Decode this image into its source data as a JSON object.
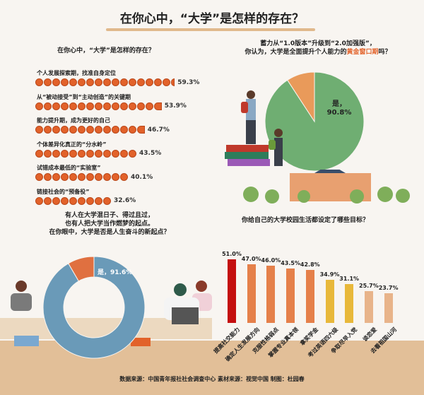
{
  "header": {
    "title": "在你心中，“大学”是怎样的存在？"
  },
  "chart_data": [
    {
      "type": "bar",
      "style": "dot-row",
      "title": "在你心中，“大学”是怎样的存在？",
      "categories": [
        "个人发展探索期，找准自身定位",
        "从“被动接受”到“主动创造”的关键期",
        "能力提升期，成为更好的自己",
        "个体差异化真正的“分水岭”",
        "试错成本最低的“实验室”",
        "链接社会的“预备役”"
      ],
      "values": [
        59.3,
        53.9,
        46.7,
        43.5,
        40.1,
        32.6
      ],
      "labels": [
        "59.3%",
        "53.9%",
        "46.7%",
        "43.5%",
        "40.1%",
        "32.6%"
      ],
      "color": "#e2622a"
    },
    {
      "type": "pie",
      "title_lines": [
        "蓄力从“1.0版本”升级到“2.0加强版”，",
        "你认为，大学是全面提升个人能力的",
        "黄金窗口期",
        "吗？"
      ],
      "slices": [
        {
          "name": "是",
          "value": 90.8,
          "label": "是，",
          "pct": "90.8%",
          "color": "#6fae72"
        },
        {
          "value": 9.2,
          "color": "#e99a5a"
        }
      ]
    },
    {
      "type": "pie",
      "donut": true,
      "title_lines": [
        "有人在大学混日子、得过且过，",
        "也有人把大学当作燃梦的起点。",
        "在你眼中，大学是否是人生奋斗的新起点？"
      ],
      "slices": [
        {
          "name": "是",
          "value": 91.6,
          "label": "是，91.6%",
          "color": "#6a9ab8"
        },
        {
          "value": 8.4,
          "color": "#e07040"
        }
      ]
    },
    {
      "type": "bar",
      "title": "你给自己的大学校园生活都设定了哪些目标？",
      "categories": [
        "提高社交能力",
        "确定人生发展方向",
        "克服性格弱点",
        "掌握专业真本领",
        "拿奖学金",
        "考过英语四六级",
        "争取尽早入党",
        "谈恋爱",
        "去看祖国山河"
      ],
      "values": [
        51.0,
        47.0,
        46.0,
        43.5,
        42.8,
        34.9,
        31.1,
        25.7,
        23.7
      ],
      "labels": [
        "51.0%",
        "47.0%",
        "46.0%",
        "43.5%",
        "42.8%",
        "34.9%",
        "31.1%",
        "25.7%",
        "23.7%"
      ],
      "colors": [
        "#c40f0f",
        "#e5804a",
        "#e5804a",
        "#e5804a",
        "#e5804a",
        "#e8b83a",
        "#e8b83a",
        "#e8b48a",
        "#e8b48a"
      ],
      "ylim": [
        0,
        55
      ]
    }
  ],
  "footer": {
    "source": "数据来源：中国青年报社社会调查中心  素材来源：视觉中国  制图：杜园春"
  }
}
